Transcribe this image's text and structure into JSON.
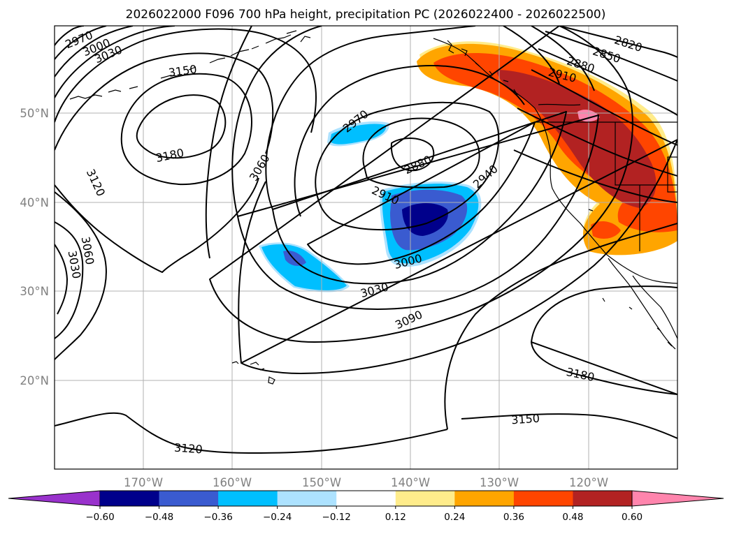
{
  "title": "2026022000 F096 700 hPa height, precipitation PC (2026022400 - 2026022500)",
  "lat_labels": [
    "50°N",
    "40°N",
    "30°N",
    "20°N"
  ],
  "lon_labels": [
    "170°W",
    "160°W",
    "150°W",
    "140°W",
    "130°W",
    "120°W"
  ],
  "contour_labels": [
    "2970",
    "3000",
    "3030",
    "3150",
    "3180",
    "3120",
    "3060",
    "3030",
    "3060",
    "2970",
    "2880",
    "2910",
    "2940",
    "3000",
    "3030",
    "3090",
    "2820",
    "2850",
    "2880",
    "2910",
    "3180",
    "3150",
    "3120"
  ],
  "colorbar": {
    "colors": [
      "#9932CC",
      "#00008B",
      "#3A5BD0",
      "#00BFFF",
      "#ADE2FF",
      "#FFFFFF",
      "#FFEC8B",
      "#FFA500",
      "#FF4500",
      "#B22222",
      "#FF85AD"
    ],
    "ticks": [
      "−0.60",
      "−0.48",
      "−0.36",
      "−0.24",
      "−0.12",
      "0.12",
      "0.24",
      "0.36",
      "0.48",
      "0.60"
    ]
  },
  "colors": {
    "contour": "#000000",
    "grid": "#b0b0b0",
    "axis_label": "#808080"
  }
}
